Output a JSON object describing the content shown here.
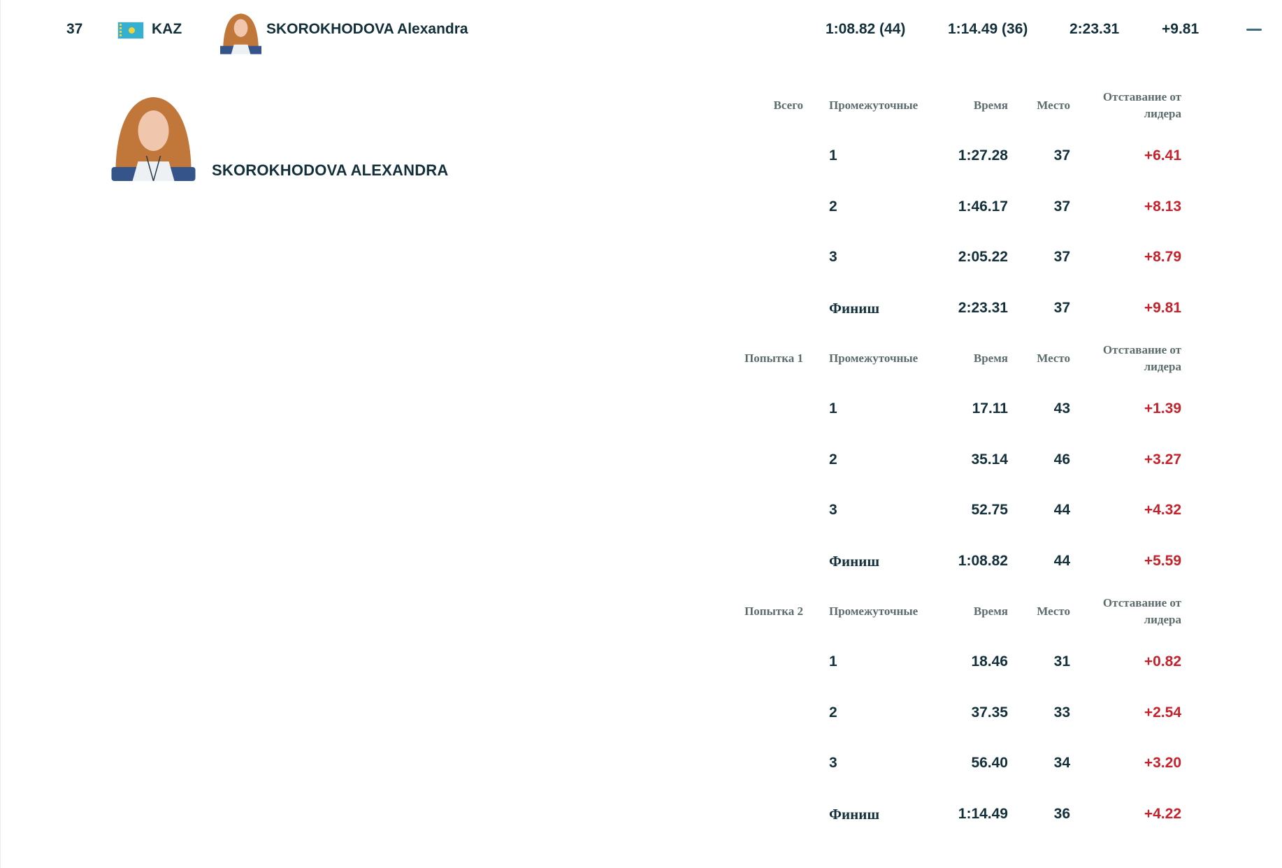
{
  "summary": {
    "rank": "37",
    "country": "KAZ",
    "name": "SKOROKHODOVA Alexandra",
    "run1": "1:08.82 (44)",
    "run2": "1:14.49 (36)",
    "total": "2:23.31",
    "behind": "+9.81",
    "collapse_icon": "minus-icon"
  },
  "detail": {
    "name": "SKOROKHODOVA ALEXANDRA",
    "headers": {
      "splits": "Промежуточные",
      "time": "Время",
      "rank": "Место",
      "behind_line1": "Отставание от",
      "behind_line2": "лидера"
    },
    "sections": [
      {
        "label": "Всего",
        "rows": [
          {
            "split": "1",
            "time": "1:27.28",
            "rank": "37",
            "behind": "+6.41"
          },
          {
            "split": "2",
            "time": "1:46.17",
            "rank": "37",
            "behind": "+8.13"
          },
          {
            "split": "3",
            "time": "2:05.22",
            "rank": "37",
            "behind": "+8.79"
          },
          {
            "split": "Финиш",
            "time": "2:23.31",
            "rank": "37",
            "behind": "+9.81"
          }
        ]
      },
      {
        "label": "Попытка 1",
        "rows": [
          {
            "split": "1",
            "time": "17.11",
            "rank": "43",
            "behind": "+1.39"
          },
          {
            "split": "2",
            "time": "35.14",
            "rank": "46",
            "behind": "+3.27"
          },
          {
            "split": "3",
            "time": "52.75",
            "rank": "44",
            "behind": "+4.32"
          },
          {
            "split": "Финиш",
            "time": "1:08.82",
            "rank": "44",
            "behind": "+5.59"
          }
        ]
      },
      {
        "label": "Попытка 2",
        "rows": [
          {
            "split": "1",
            "time": "18.46",
            "rank": "31",
            "behind": "+0.82"
          },
          {
            "split": "2",
            "time": "37.35",
            "rank": "33",
            "behind": "+2.54"
          },
          {
            "split": "3",
            "time": "56.40",
            "rank": "34",
            "behind": "+3.20"
          },
          {
            "split": "Финиш",
            "time": "1:14.49",
            "rank": "36",
            "behind": "+4.22"
          }
        ]
      }
    ]
  },
  "colors": {
    "text": "#13303a",
    "header": "#5c6b6b",
    "behind": "#c5222c",
    "flag": "#36b0d0"
  }
}
